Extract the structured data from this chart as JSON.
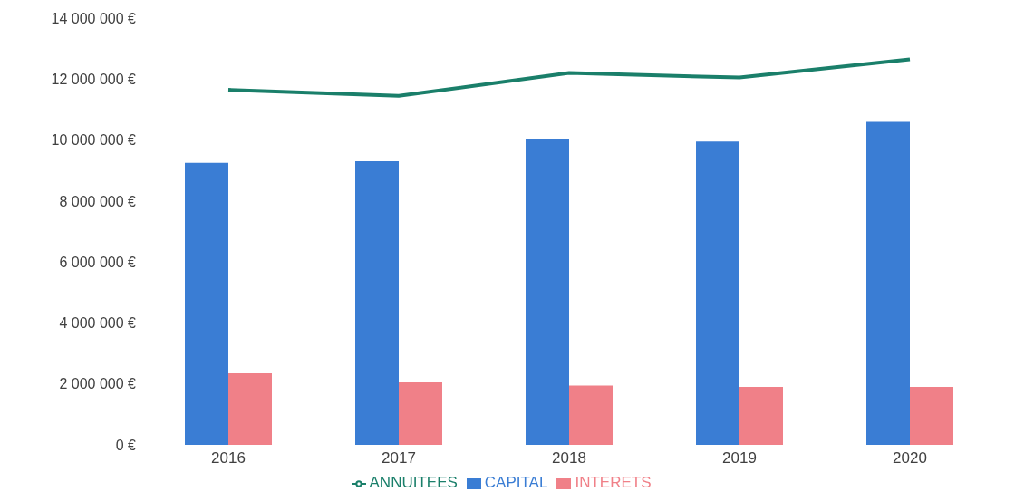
{
  "chart_data": {
    "type": "bar",
    "categories": [
      "2016",
      "2017",
      "2018",
      "2019",
      "2020"
    ],
    "series": [
      {
        "name": "CAPITAL",
        "color": "#3a7dd4",
        "values": [
          9250000,
          9300000,
          10050000,
          9950000,
          10600000
        ]
      },
      {
        "name": "INTERETS",
        "color": "#f08088",
        "values": [
          2350000,
          2050000,
          1950000,
          1900000,
          1900000
        ]
      },
      {
        "name": "ANNUITEES",
        "type": "line",
        "color": "#1a7f6a",
        "values": [
          11650000,
          11450000,
          12200000,
          12050000,
          12650000
        ]
      }
    ],
    "ylim": [
      0,
      14000000
    ],
    "yticks": [
      {
        "value": 0,
        "label": "0 €"
      },
      {
        "value": 2000000,
        "label": "2 000 000 €"
      },
      {
        "value": 4000000,
        "label": "4 000 000 €"
      },
      {
        "value": 6000000,
        "label": "6 000 000 €"
      },
      {
        "value": 8000000,
        "label": "8 000 000 €"
      },
      {
        "value": 10000000,
        "label": "10 000 000 €"
      },
      {
        "value": 12000000,
        "label": "12 000 000 €"
      },
      {
        "value": 14000000,
        "label": "14 000 000 €"
      }
    ],
    "grid": false,
    "legend": "bottom",
    "marker": "none",
    "line_style": "solid"
  }
}
